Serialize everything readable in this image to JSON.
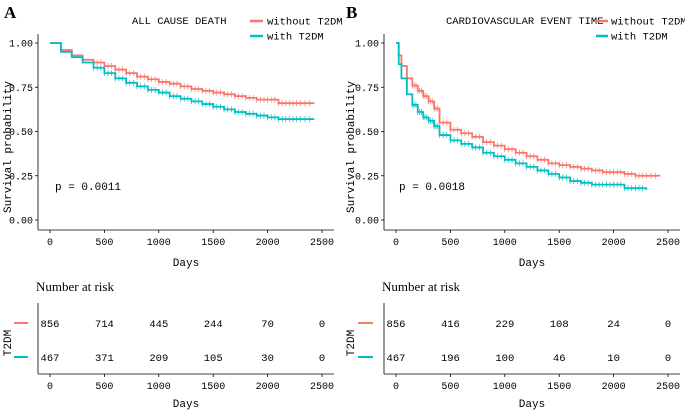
{
  "chart_data": [
    {
      "panel_label": "A",
      "type": "line",
      "title": "ALL CAUSE DEATH",
      "xlabel": "Days",
      "ylabel": "Survival probability",
      "xlim": [
        0,
        2500
      ],
      "ylim": [
        0,
        1
      ],
      "x_ticks": [
        0,
        500,
        1000,
        1500,
        2000,
        2500
      ],
      "x_tick_labels": [
        "0",
        "500",
        "1000",
        "1500",
        "2000",
        "2500"
      ],
      "y_ticks": [
        0,
        0.25,
        0.5,
        0.75,
        1.0
      ],
      "y_tick_labels": [
        "0.00",
        "0.25",
        "0.50",
        "0.75",
        "1.00"
      ],
      "legend_position": "top-right",
      "pvalue_label": "p = 0.0011",
      "series": [
        {
          "name": "without T2DM",
          "color": "#F8766D",
          "x": [
            0,
            100,
            200,
            300,
            400,
            500,
            600,
            700,
            800,
            900,
            1000,
            1100,
            1200,
            1300,
            1400,
            1500,
            1600,
            1700,
            1800,
            1900,
            2000,
            2100,
            2200,
            2300,
            2430
          ],
          "y": [
            1.0,
            0.96,
            0.93,
            0.905,
            0.89,
            0.87,
            0.85,
            0.83,
            0.81,
            0.795,
            0.78,
            0.77,
            0.755,
            0.74,
            0.73,
            0.72,
            0.71,
            0.7,
            0.69,
            0.68,
            0.68,
            0.66,
            0.66,
            0.66,
            0.66
          ]
        },
        {
          "name": "with T2DM",
          "color": "#00BFC4",
          "x": [
            0,
            100,
            200,
            300,
            400,
            500,
            600,
            700,
            800,
            900,
            1000,
            1100,
            1200,
            1300,
            1400,
            1500,
            1600,
            1700,
            1800,
            1900,
            2000,
            2100,
            2200,
            2300,
            2430
          ],
          "y": [
            1.0,
            0.95,
            0.92,
            0.89,
            0.86,
            0.83,
            0.8,
            0.775,
            0.755,
            0.735,
            0.72,
            0.7,
            0.685,
            0.67,
            0.655,
            0.64,
            0.625,
            0.61,
            0.6,
            0.59,
            0.58,
            0.57,
            0.57,
            0.57,
            0.57
          ]
        }
      ],
      "risk_table": {
        "title": "Number at risk",
        "row_title": "T2DM",
        "xlabel": "Days",
        "x_ticks": [
          0,
          500,
          1000,
          1500,
          2000,
          2500
        ],
        "x_tick_labels": [
          "0",
          "500",
          "1000",
          "1500",
          "2000",
          "2500"
        ],
        "rows": [
          {
            "color": "#F8766D",
            "values": [
              "856",
              "714",
              "445",
              "244",
              "70",
              "0"
            ]
          },
          {
            "color": "#00BFC4",
            "values": [
              "467",
              "371",
              "209",
              "105",
              "30",
              "0"
            ]
          }
        ]
      }
    },
    {
      "panel_label": "B",
      "type": "line",
      "title": "CARDIOVASCULAR EVENT TIME",
      "xlabel": "Days",
      "ylabel": "Survival probability",
      "xlim": [
        0,
        2500
      ],
      "ylim": [
        0,
        1
      ],
      "x_ticks": [
        0,
        500,
        1000,
        1500,
        2000,
        2500
      ],
      "x_tick_labels": [
        "0",
        "500",
        "1000",
        "1500",
        "2000",
        "2500"
      ],
      "y_ticks": [
        0,
        0.25,
        0.5,
        0.75,
        1.0
      ],
      "y_tick_labels": [
        "0.00",
        "0.25",
        "0.50",
        "0.75",
        "1.00"
      ],
      "legend_position": "top-right",
      "pvalue_label": "p = 0.0018",
      "series": [
        {
          "name": "without T2DM",
          "color": "#F8766D",
          "x": [
            0,
            25,
            50,
            100,
            150,
            200,
            250,
            300,
            350,
            400,
            500,
            600,
            700,
            800,
            900,
            1000,
            1100,
            1200,
            1300,
            1400,
            1500,
            1600,
            1700,
            1800,
            1900,
            2000,
            2100,
            2200,
            2300,
            2430
          ],
          "y": [
            1.0,
            0.93,
            0.87,
            0.8,
            0.76,
            0.73,
            0.7,
            0.67,
            0.63,
            0.55,
            0.51,
            0.49,
            0.47,
            0.44,
            0.42,
            0.4,
            0.38,
            0.36,
            0.34,
            0.32,
            0.31,
            0.3,
            0.29,
            0.28,
            0.27,
            0.27,
            0.26,
            0.25,
            0.25,
            0.25
          ]
        },
        {
          "name": "with T2DM",
          "color": "#00BFC4",
          "x": [
            0,
            25,
            50,
            100,
            150,
            200,
            250,
            300,
            350,
            400,
            500,
            600,
            700,
            800,
            900,
            1000,
            1100,
            1200,
            1300,
            1400,
            1500,
            1600,
            1700,
            1800,
            1900,
            2000,
            2100,
            2200,
            2300
          ],
          "y": [
            1.0,
            0.88,
            0.8,
            0.71,
            0.65,
            0.61,
            0.58,
            0.56,
            0.53,
            0.48,
            0.45,
            0.43,
            0.41,
            0.38,
            0.36,
            0.34,
            0.32,
            0.3,
            0.28,
            0.26,
            0.24,
            0.22,
            0.21,
            0.2,
            0.2,
            0.2,
            0.18,
            0.18,
            0.17
          ]
        }
      ],
      "risk_table": {
        "title": "Number at risk",
        "row_title": "T2DM",
        "xlabel": "Days",
        "x_ticks": [
          0,
          500,
          1000,
          1500,
          2000,
          2500
        ],
        "x_tick_labels": [
          "0",
          "500",
          "1000",
          "1500",
          "2000",
          "2500"
        ],
        "rows": [
          {
            "color": "#F8766D",
            "values": [
              "856",
              "416",
              "229",
              "108",
              "24",
              "0"
            ]
          },
          {
            "color": "#00BFC4",
            "values": [
              "467",
              "196",
              "100",
              "46",
              "10",
              "0"
            ]
          }
        ]
      }
    }
  ]
}
